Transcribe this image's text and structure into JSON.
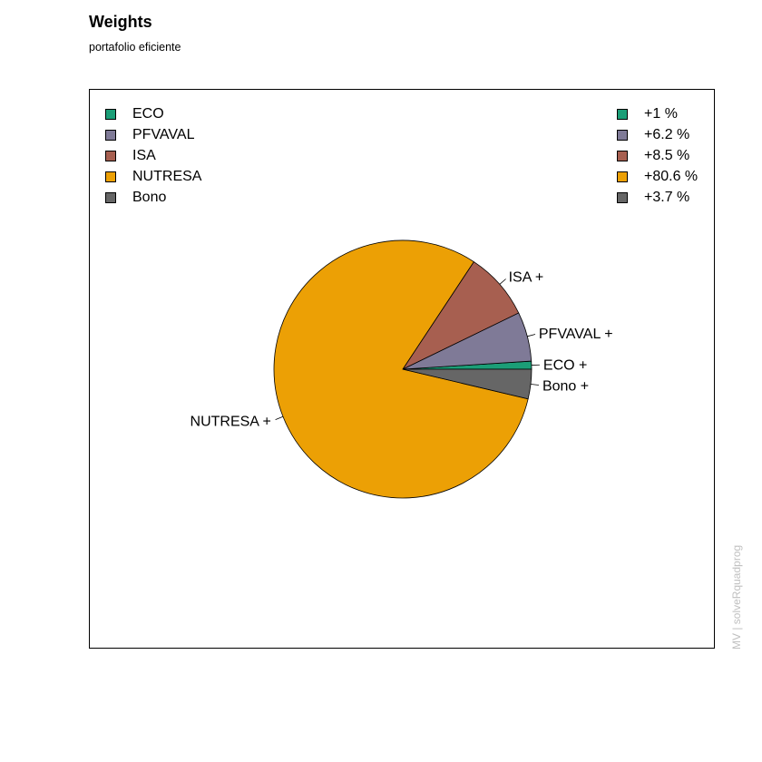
{
  "title": "Weights",
  "subtitle": "portafolio eficiente",
  "watermark": "MV | solveRquadprog",
  "chart_data": {
    "type": "pie",
    "title": "Weights",
    "subtitle": "portafolio eficiente",
    "start_angle_deg": 0,
    "direction": "counterclockwise",
    "slices": [
      {
        "name": "ECO",
        "value": 1.0,
        "label": "ECO +",
        "legend_value": "+1 %",
        "color": "#1b9e77"
      },
      {
        "name": "PFVAVAL",
        "value": 6.2,
        "label": "PFVAVAL +",
        "legend_value": "+6.2 %",
        "color": "#7f7a97"
      },
      {
        "name": "ISA",
        "value": 8.5,
        "label": "ISA +",
        "legend_value": "+8.5 %",
        "color": "#a75f50"
      },
      {
        "name": "NUTRESA",
        "value": 80.6,
        "label": "NUTRESA +",
        "legend_value": "+80.6 %",
        "color": "#eca005"
      },
      {
        "name": "Bono",
        "value": 3.7,
        "label": "Bono +",
        "legend_value": "+3.7 %",
        "color": "#666666"
      }
    ],
    "legend": {
      "names_position": "top-left",
      "values_position": "top-right"
    }
  }
}
